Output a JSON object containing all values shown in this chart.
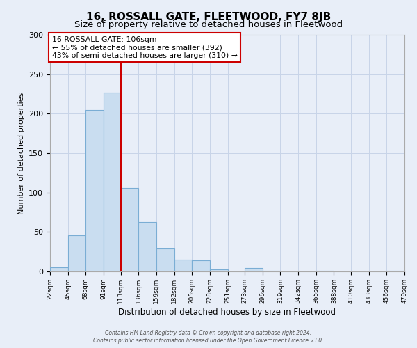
{
  "title": "16, ROSSALL GATE, FLEETWOOD, FY7 8JB",
  "subtitle": "Size of property relative to detached houses in Fleetwood",
  "xlabel": "Distribution of detached houses by size in Fleetwood",
  "ylabel": "Number of detached properties",
  "bin_edges": [
    22,
    45,
    68,
    91,
    113,
    136,
    159,
    182,
    205,
    228,
    251,
    273,
    296,
    319,
    342,
    365,
    388,
    410,
    433,
    456,
    479
  ],
  "bar_heights": [
    5,
    46,
    205,
    227,
    106,
    63,
    29,
    15,
    14,
    3,
    0,
    4,
    1,
    0,
    0,
    1,
    0,
    0,
    0,
    1
  ],
  "bar_color": "#c9ddf0",
  "bar_edge_color": "#7aadd4",
  "vline_x": 113,
  "vline_color": "#cc0000",
  "annotation_line1": "16 ROSSALL GATE: 106sqm",
  "annotation_line2": "← 55% of detached houses are smaller (392)",
  "annotation_line3": "43% of semi-detached houses are larger (310) →",
  "annotation_box_color": "#cc0000",
  "tick_labels": [
    "22sqm",
    "45sqm",
    "68sqm",
    "91sqm",
    "113sqm",
    "136sqm",
    "159sqm",
    "182sqm",
    "205sqm",
    "228sqm",
    "251sqm",
    "273sqm",
    "296sqm",
    "319sqm",
    "342sqm",
    "365sqm",
    "388sqm",
    "410sqm",
    "433sqm",
    "456sqm",
    "479sqm"
  ],
  "ylim": [
    0,
    300
  ],
  "yticks": [
    0,
    50,
    100,
    150,
    200,
    250,
    300
  ],
  "footer_line1": "Contains HM Land Registry data © Crown copyright and database right 2024.",
  "footer_line2": "Contains public sector information licensed under the Open Government Licence v3.0.",
  "bg_color": "#e8eef8",
  "plot_bg_color": "#e8eef8",
  "grid_color": "#c8d4e8",
  "title_fontsize": 11,
  "subtitle_fontsize": 9.5
}
